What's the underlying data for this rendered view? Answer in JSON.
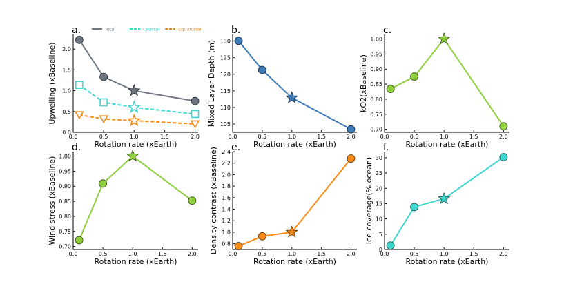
{
  "chart_data": [
    {
      "id": "a",
      "panel_label": "a.",
      "type": "line",
      "xlabel": "Rotation rate (xEarth)",
      "ylabel": "Upwelling (xBaseline)",
      "xlim": [
        0,
        2.05
      ],
      "ylim": [
        0,
        2.35
      ],
      "xticks": [
        0.0,
        0.5,
        1.0,
        1.5,
        2.0
      ],
      "xtick_labels": [
        "0.0",
        "0.5",
        "1.0",
        "1.5",
        "2.0"
      ],
      "yticks": [
        0.0,
        0.5,
        1.0,
        1.5,
        2.0
      ],
      "ytick_labels": [
        "0.0",
        "0.5",
        "1.0",
        "1.5",
        "2.0"
      ],
      "legend": {
        "placement": "top"
      },
      "series": [
        {
          "name": "Total",
          "color": "#6e7681",
          "dash": "solid",
          "marker": "circle",
          "filled": true,
          "x": [
            0.1,
            0.5,
            1.0,
            2.0
          ],
          "y": [
            2.22,
            1.33,
            1.0,
            0.75
          ]
        },
        {
          "name": "Coastal",
          "color": "#3ed6cf",
          "dash": "dashed",
          "marker": "square",
          "filled": false,
          "x": [
            0.1,
            0.5,
            1.0,
            2.0
          ],
          "y": [
            1.14,
            0.72,
            0.6,
            0.44
          ]
        },
        {
          "name": "Equatorial",
          "color": "#f58b16",
          "dash": "dashed",
          "marker": "triangle-down",
          "filled": false,
          "x": [
            0.1,
            0.5,
            1.0,
            2.0
          ],
          "y": [
            0.42,
            0.32,
            0.28,
            0.2
          ]
        }
      ]
    },
    {
      "id": "b",
      "panel_label": "b.",
      "type": "line",
      "xlabel": "Rotation rate (xEarth)",
      "ylabel": "Mixed Layer Depth (m)",
      "xlim": [
        0,
        2.1
      ],
      "ylim": [
        102.5,
        132
      ],
      "xticks": [
        0.0,
        0.5,
        1.0,
        1.5,
        2.0
      ],
      "xtick_labels": [
        "0.0",
        "0.5",
        "1.0",
        "1.5",
        "2.0"
      ],
      "yticks": [
        105,
        110,
        115,
        120,
        125,
        130
      ],
      "ytick_labels": [
        "105",
        "110",
        "115",
        "120",
        "125",
        "130"
      ],
      "series": [
        {
          "name": "Mixed Layer Depth",
          "color": "#3d7ab8",
          "dash": "solid",
          "marker": "circle",
          "filled": true,
          "x": [
            0.1,
            0.5,
            1.0,
            2.0
          ],
          "y": [
            130.1,
            121.3,
            112.9,
            103.4
          ]
        }
      ]
    },
    {
      "id": "c",
      "panel_label": "c.",
      "type": "line",
      "xlabel": "Rotation rate (xEarth)",
      "ylabel": "kO2(xBaseline)",
      "xlim": [
        0,
        2.1
      ],
      "ylim": [
        0.69,
        1.015
      ],
      "xticks": [
        0.0,
        0.5,
        1.0,
        1.5,
        2.0
      ],
      "xtick_labels": [
        "0.0",
        "0.5",
        "1.0",
        "1.5",
        "2.0"
      ],
      "yticks": [
        0.7,
        0.75,
        0.8,
        0.85,
        0.9,
        0.95,
        1.0
      ],
      "ytick_labels": [
        "0.70",
        "0.75",
        "0.80",
        "0.85",
        "0.90",
        "0.95",
        "1.00"
      ],
      "series": [
        {
          "name": "kO2",
          "color": "#8fcf3c",
          "dash": "solid",
          "marker": "circle",
          "filled": true,
          "x": [
            0.1,
            0.5,
            1.0,
            2.0
          ],
          "y": [
            0.834,
            0.875,
            1.0,
            0.71
          ]
        }
      ]
    },
    {
      "id": "d",
      "panel_label": "d.",
      "type": "line",
      "xlabel": "Rotation rate (xEarth)",
      "ylabel": "Wind stress (xBaseline)",
      "xlim": [
        0,
        2.1
      ],
      "ylim": [
        0.69,
        1.015
      ],
      "xticks": [
        0.0,
        0.5,
        1.0,
        1.5,
        2.0
      ],
      "xtick_labels": [
        "0.0",
        "0.5",
        "1.0",
        "1.5",
        "2.0"
      ],
      "yticks": [
        0.7,
        0.75,
        0.8,
        0.85,
        0.9,
        0.95,
        1.0
      ],
      "ytick_labels": [
        "0.70",
        "0.75",
        "0.80",
        "0.85",
        "0.90",
        "0.95",
        "1.00"
      ],
      "series": [
        {
          "name": "Wind stress",
          "color": "#8fcf3c",
          "dash": "solid",
          "marker": "circle",
          "filled": true,
          "x": [
            0.1,
            0.5,
            1.0,
            2.0
          ],
          "y": [
            0.721,
            0.909,
            1.0,
            0.852
          ]
        }
      ]
    },
    {
      "id": "e",
      "panel_label": "e.",
      "type": "line",
      "xlabel": "Rotation rate (xEarth)",
      "ylabel": "Density contrast (xBaseline)",
      "xlim": [
        0,
        2.1
      ],
      "ylim": [
        0.7,
        2.4
      ],
      "xticks": [
        0.0,
        0.5,
        1.0,
        1.5,
        2.0
      ],
      "xtick_labels": [
        "0.0",
        "0.5",
        "1.0",
        "1.5",
        "2.0"
      ],
      "yticks": [
        0.8,
        1.0,
        1.2,
        1.4,
        1.6,
        1.8,
        2.0,
        2.2,
        2.4
      ],
      "ytick_labels": [
        "0.8",
        "1.0",
        "1.2",
        "1.4",
        "1.6",
        "1.8",
        "2.0",
        "2.2",
        "2.4"
      ],
      "series": [
        {
          "name": "Density contrast",
          "color": "#f58b16",
          "dash": "solid",
          "marker": "circle",
          "filled": true,
          "x": [
            0.1,
            0.5,
            1.0,
            2.0
          ],
          "y": [
            0.76,
            0.93,
            1.0,
            2.28
          ]
        }
      ]
    },
    {
      "id": "f",
      "panel_label": "f.",
      "type": "line",
      "xlabel": "Rotation rate (xEarth)",
      "ylabel": "Ice coverage(% ocean)",
      "xlim": [
        0,
        2.1
      ],
      "ylim": [
        0,
        32
      ],
      "xticks": [
        0.0,
        0.5,
        1.0,
        1.5,
        2.0
      ],
      "xtick_labels": [
        "0.0",
        "0.5",
        "1.0",
        "1.5",
        "2.0"
      ],
      "yticks": [
        0,
        5,
        10,
        15,
        20,
        25,
        30
      ],
      "ytick_labels": [
        "0",
        "5",
        "10",
        "15",
        "20",
        "25",
        "30"
      ],
      "series": [
        {
          "name": "Ice coverage",
          "color": "#3ed6cf",
          "dash": "solid",
          "marker": "circle",
          "filled": true,
          "x": [
            0.1,
            0.5,
            1.0,
            2.0
          ],
          "y": [
            1.3,
            13.9,
            16.6,
            30.2
          ]
        }
      ]
    }
  ]
}
